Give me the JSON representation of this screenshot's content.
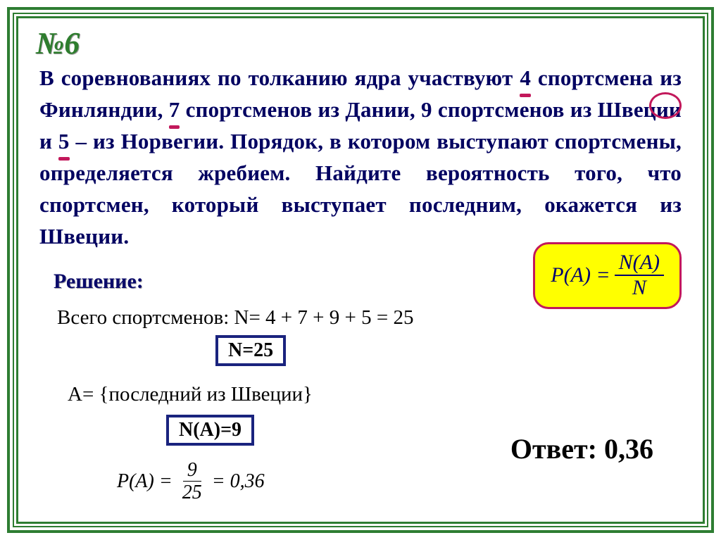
{
  "problem_number": "№6",
  "problem": {
    "pre1": "В соревнованиях по толканию ядра участвуют ",
    "n1": "4",
    "mid1": " спортсмена из Финляндии, ",
    "n2": "7",
    "mid2": " спортсменов из Дании, ",
    "n3": "9",
    "mid3": " спортсменов из Швеции и ",
    "n4": "5",
    "post": " – из Норвегии. Порядок, в котором  выступают спортсмены, определяется жребием. Найдите вероятность того, что спортсмен, который выступает последним, окажется из Швеции."
  },
  "formula": {
    "lhs": "P(A) =",
    "num": "N(A)",
    "den": "N"
  },
  "solution": {
    "label": "Решение:",
    "total_line": "Всего спортсменов: N= 4 + 7 + 9 + 5 = 25",
    "n_box": "N=25",
    "event_line": "A= {последний из Швеции}",
    "na_box": "N(A)=9",
    "pa_lhs": "P(A) =",
    "pa_num": "9",
    "pa_den": "25",
    "pa_eq": "= 0,36"
  },
  "answer": "Ответ: 0,36",
  "colors": {
    "frame": "#2e7d32",
    "accent": "#c2185b",
    "text_dark_blue": "#000060",
    "highlight_bg": "#ffff00",
    "box_border": "#1a237e"
  }
}
